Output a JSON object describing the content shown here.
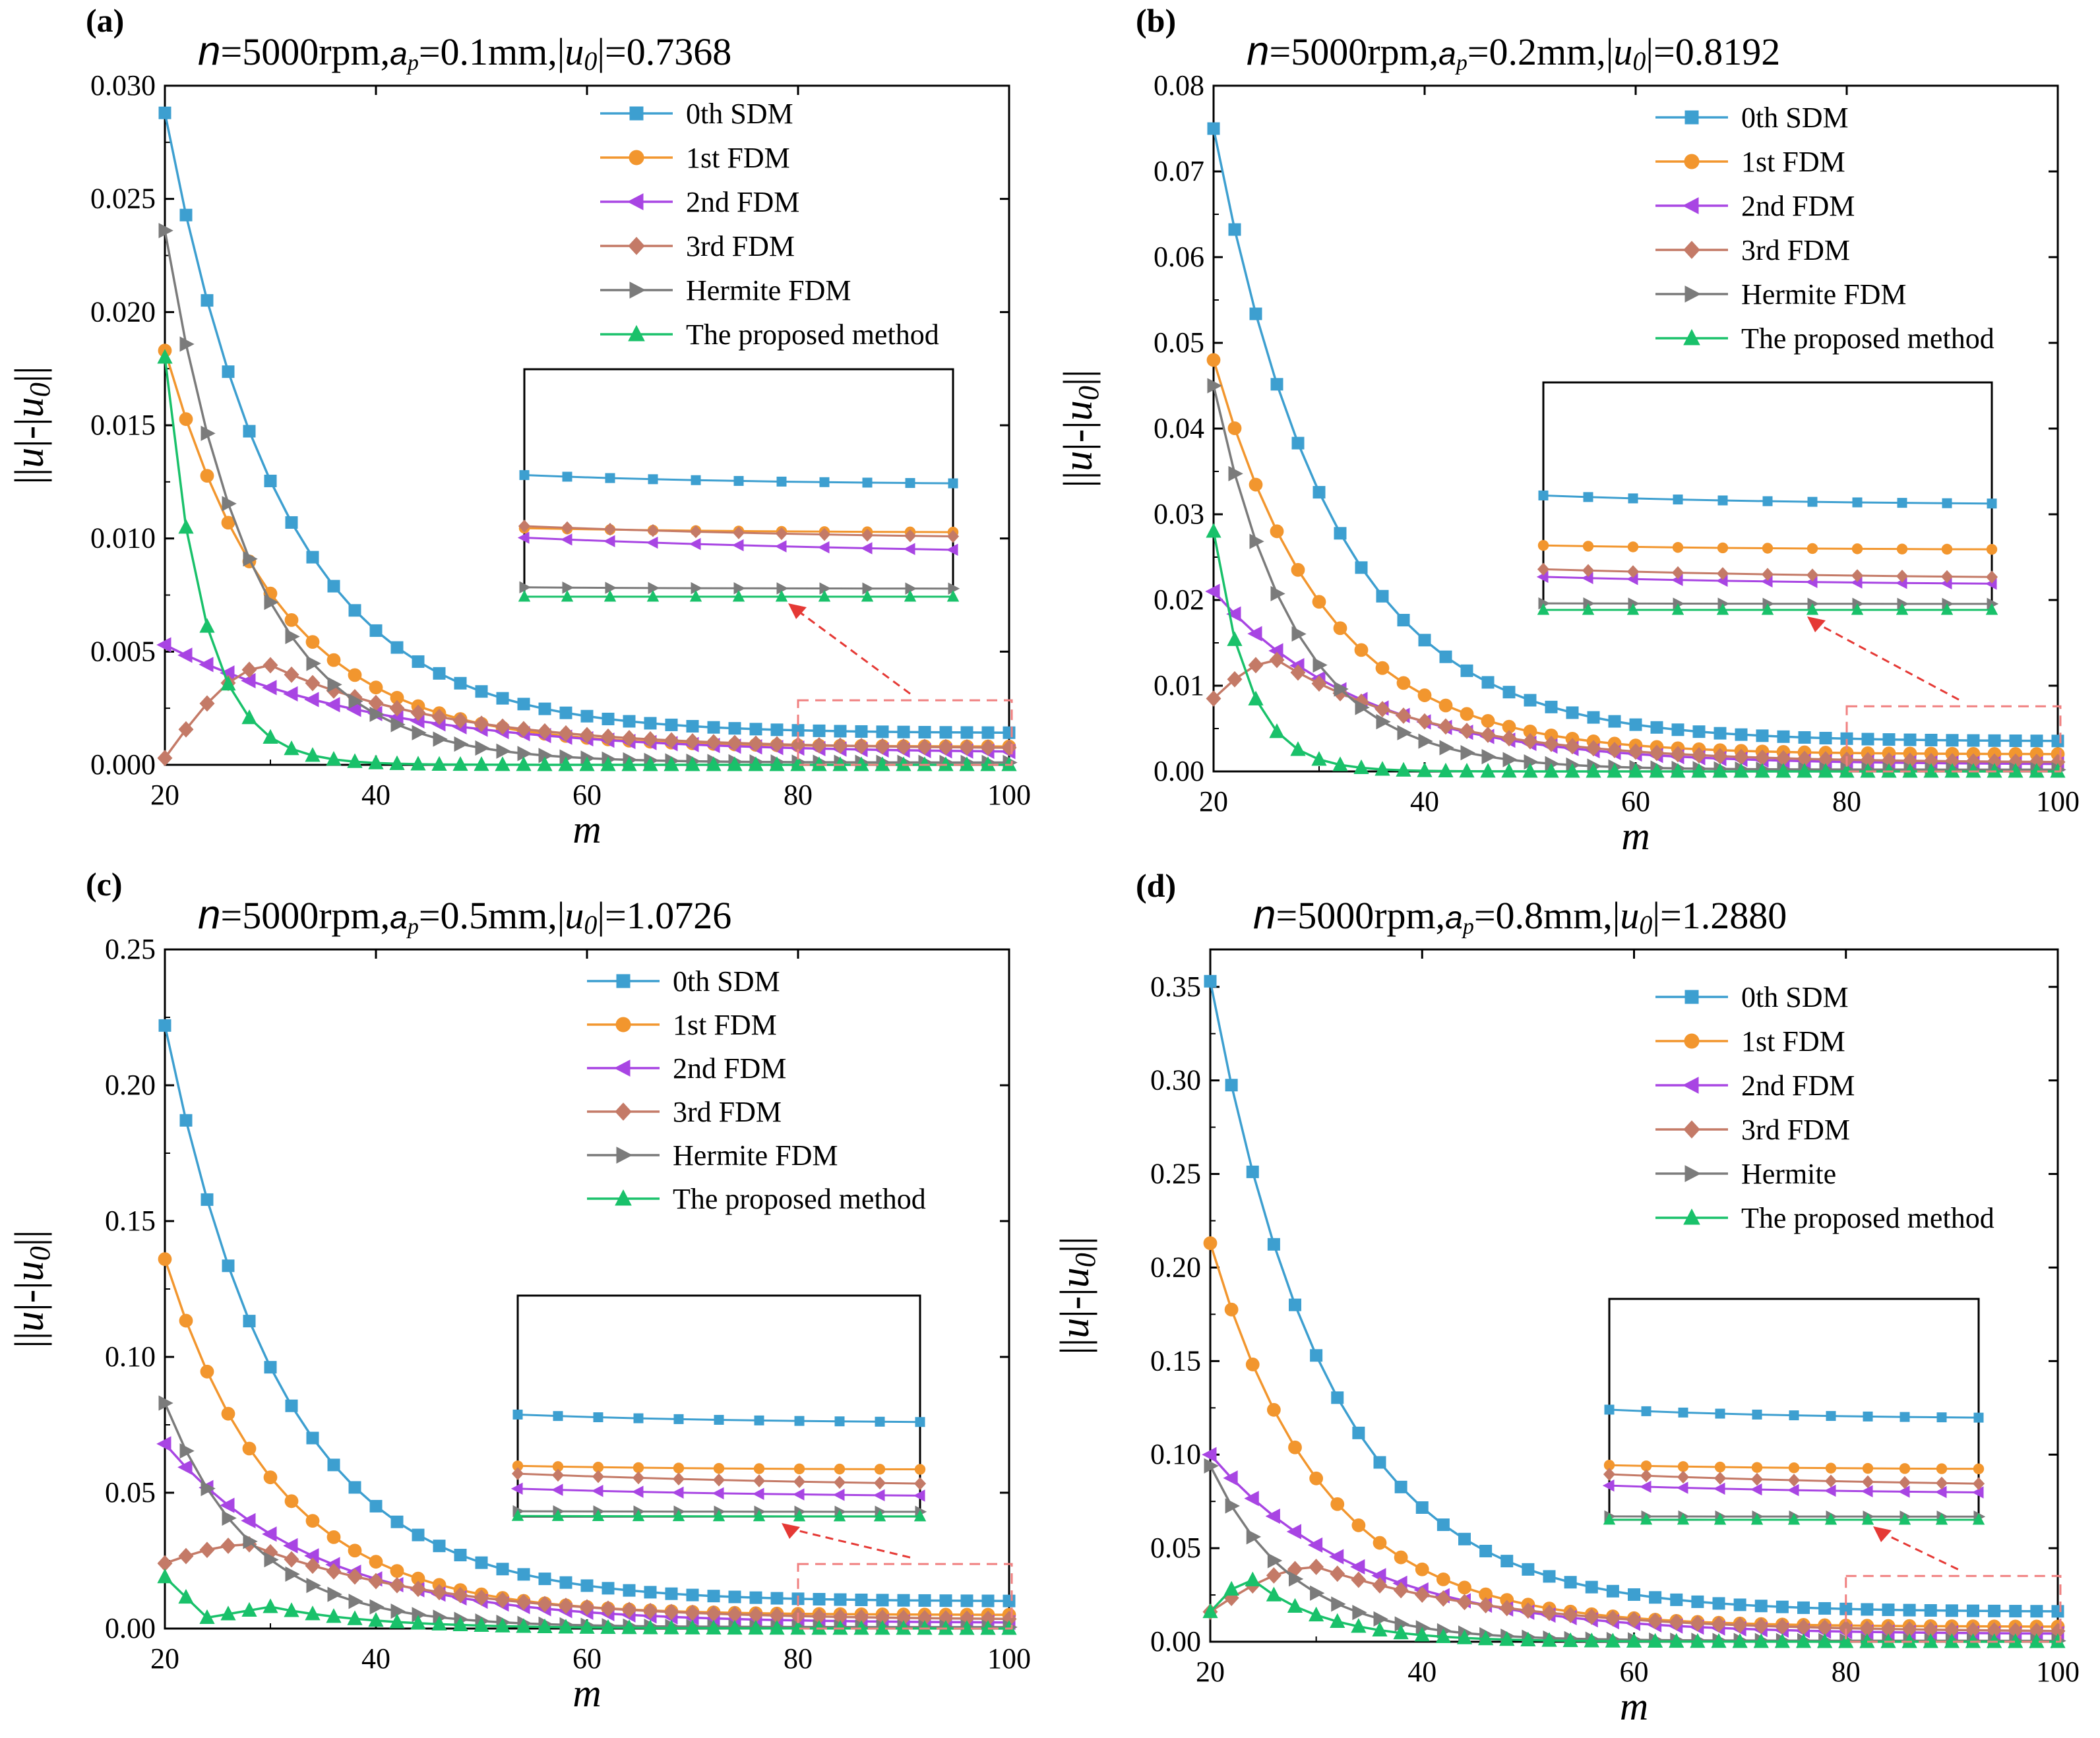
{
  "figure": {
    "caption": ""
  },
  "styles": {
    "0th SDM": {
      "color": "#3d9fd0",
      "marker": "square"
    },
    "1st FDM": {
      "color": "#f2962e",
      "marker": "circle"
    },
    "2nd FDM": {
      "color": "#a845e3",
      "marker": "tri-left"
    },
    "3rd FDM": {
      "color": "#c47a67",
      "marker": "diamond"
    },
    "Hermite": {
      "color": "#7b7b7b",
      "marker": "tri-right"
    },
    "Proposed": {
      "color": "#19c16a",
      "marker": "tri-up"
    }
  },
  "chart_data": [
    {
      "panel": "(a)",
      "type": "line",
      "title_parts": {
        "n": "n",
        "rpm": "=5000rpm,",
        "ap": "a",
        "ap_sub": "p",
        "ap_val": "=0.1mm,|",
        "u0": "u",
        "u0_sub": "0",
        "u0_val": "|=0.7368"
      },
      "xlabel": "m",
      "ylabel_parts": [
        "||",
        "u",
        "|-|",
        "u",
        "0",
        "||"
      ],
      "xlim": [
        20,
        100
      ],
      "ylim": [
        0,
        0.03
      ],
      "xticks": [
        20,
        40,
        60,
        80,
        100
      ],
      "yticks": [
        0,
        0.005,
        0.01,
        0.015,
        0.02,
        0.025,
        0.03
      ],
      "ytick_labels": [
        "0.000",
        "0.005",
        "0.010",
        "0.015",
        "0.020",
        "0.025",
        "0.030"
      ],
      "x_start": 20,
      "x_step": 2,
      "series": [
        {
          "name": "0th SDM",
          "style": "0th SDM",
          "start": 0.0288,
          "end": 0.0014,
          "k": 0.09
        },
        {
          "name": "1st FDM",
          "style": "1st FDM",
          "start": 0.0183,
          "end": 0.0008,
          "k": 0.095
        },
        {
          "name": "2nd FDM",
          "style": "2nd FDM",
          "start": 0.0053,
          "end": 0.0005,
          "k": 0.05
        },
        {
          "name": "3rd FDM",
          "style": "3rd FDM",
          "start": 0.0003,
          "peak_x": 30,
          "peak": 0.0044,
          "end": 0.0007,
          "k": 0.06
        },
        {
          "name": "Hermite FDM",
          "style": "Hermite",
          "start": 0.0236,
          "end": 0.0001,
          "k": 0.12
        },
        {
          "name": "The proposed method",
          "style": "Proposed",
          "start": 0.018,
          "end": 0.0,
          "k": 0.27
        }
      ],
      "annotation": "dashed zoom box at m=80–100 with arrow to inset"
    },
    {
      "panel": "(b)",
      "type": "line",
      "title_parts": {
        "n": "n",
        "rpm": "=5000rpm,",
        "ap": "a",
        "ap_sub": "p",
        "ap_val": "=0.2mm,|",
        "u0": "u",
        "u0_sub": "0",
        "u0_val": "|=0.8192"
      },
      "xlabel": "m",
      "ylabel_parts": [
        "||",
        "u",
        "|-|",
        "u",
        "0",
        "||"
      ],
      "xlim": [
        20,
        100
      ],
      "ylim": [
        0,
        0.08
      ],
      "xticks": [
        20,
        40,
        60,
        80,
        100
      ],
      "yticks": [
        0,
        0.01,
        0.02,
        0.03,
        0.04,
        0.05,
        0.06,
        0.07,
        0.08
      ],
      "ytick_labels": [
        "0.00",
        "0.01",
        "0.02",
        "0.03",
        "0.04",
        "0.05",
        "0.06",
        "0.07",
        "0.08"
      ],
      "x_start": 20,
      "x_step": 2,
      "series": [
        {
          "name": "0th SDM",
          "style": "0th SDM",
          "start": 0.075,
          "end": 0.0035,
          "k": 0.09
        },
        {
          "name": "1st FDM",
          "style": "1st FDM",
          "start": 0.048,
          "end": 0.002,
          "k": 0.095
        },
        {
          "name": "2nd FDM",
          "style": "2nd FDM",
          "start": 0.021,
          "end": 0.0008,
          "k": 0.07
        },
        {
          "name": "3rd FDM",
          "style": "3rd FDM",
          "start": 0.0085,
          "peak_x": 26,
          "peak": 0.013,
          "end": 0.001,
          "k": 0.065
        },
        {
          "name": "Hermite FDM",
          "style": "Hermite",
          "start": 0.045,
          "end": 0.0002,
          "k": 0.13
        },
        {
          "name": "The proposed method",
          "style": "Proposed",
          "start": 0.028,
          "end": 0.0,
          "k": 0.3
        }
      ],
      "annotation": "dashed zoom box at m=80–100 with arrow to inset"
    },
    {
      "panel": "(c)",
      "type": "line",
      "title_parts": {
        "n": "n",
        "rpm": "=5000rpm,",
        "ap": "a",
        "ap_sub": "p",
        "ap_val": "=0.5mm,|",
        "u0": "u",
        "u0_sub": "0",
        "u0_val": "|=1.0726"
      },
      "xlabel": "m",
      "ylabel_parts": [
        "||",
        "u",
        "|-|",
        "u",
        "0",
        "||"
      ],
      "xlim": [
        20,
        100
      ],
      "ylim": [
        0,
        0.25
      ],
      "xticks": [
        20,
        40,
        60,
        80,
        100
      ],
      "yticks": [
        0,
        0.05,
        0.1,
        0.15,
        0.2,
        0.25
      ],
      "ytick_labels": [
        "0.00",
        "0.05",
        "0.10",
        "0.15",
        "0.20",
        "0.25"
      ],
      "x_start": 20,
      "x_step": 2,
      "series": [
        {
          "name": "0th SDM",
          "style": "0th SDM",
          "start": 0.222,
          "end": 0.01,
          "k": 0.09
        },
        {
          "name": "1st FDM",
          "style": "1st FDM",
          "start": 0.136,
          "end": 0.005,
          "k": 0.095
        },
        {
          "name": "2nd FDM",
          "style": "2nd FDM",
          "start": 0.068,
          "end": 0.002,
          "k": 0.07
        },
        {
          "name": "3rd FDM",
          "style": "3rd FDM",
          "start": 0.024,
          "peak_x": 28,
          "peak": 0.031,
          "end": 0.003,
          "k": 0.055
        },
        {
          "name": "Hermite FDM",
          "style": "Hermite",
          "start": 0.083,
          "end": 0.0005,
          "k": 0.12
        },
        {
          "name": "The proposed method",
          "style": "Proposed",
          "start": 0.019,
          "dip": 0.004,
          "peak_x": 30,
          "peak": 0.008,
          "end": 0.0,
          "k": 0.1
        }
      ],
      "annotation": "dashed zoom box at m=80–100 with arrow to inset"
    },
    {
      "panel": "(d)",
      "type": "line",
      "title_parts": {
        "n": "n",
        "rpm": "=5000rpm,",
        "ap": "a",
        "ap_sub": "p",
        "ap_val": "=0.8mm,|",
        "u0": "u",
        "u0_sub": "0",
        "u0_val": "|=1.2880"
      },
      "xlabel": "m",
      "ylabel_parts": [
        "||",
        "u",
        "|-|",
        "u",
        "0",
        "||"
      ],
      "xlim": [
        20,
        100
      ],
      "ylim": [
        0,
        0.37
      ],
      "xticks": [
        20,
        40,
        60,
        80,
        100
      ],
      "yticks": [
        0,
        0.05,
        0.1,
        0.15,
        0.2,
        0.25,
        0.3,
        0.35
      ],
      "ytick_labels": [
        "0.00",
        "0.05",
        "0.10",
        "0.15",
        "0.20",
        "0.25",
        "0.30",
        "0.35"
      ],
      "x_start": 20,
      "x_step": 2,
      "series": [
        {
          "name": "0th SDM",
          "style": "0th SDM",
          "start": 0.353,
          "end": 0.016,
          "k": 0.09
        },
        {
          "name": "1st FDM",
          "style": "1st FDM",
          "start": 0.213,
          "end": 0.008,
          "k": 0.095
        },
        {
          "name": "2nd FDM",
          "style": "2nd FDM",
          "start": 0.1,
          "end": 0.004,
          "k": 0.07
        },
        {
          "name": "3rd FDM",
          "style": "3rd FDM",
          "start": 0.016,
          "peak_x": 30,
          "peak": 0.04,
          "end": 0.005,
          "k": 0.055
        },
        {
          "name": "Hermite",
          "style": "Hermite",
          "start": 0.094,
          "end": 0.0005,
          "k": 0.13
        },
        {
          "name": "The proposed method",
          "style": "Proposed",
          "start": 0.016,
          "peak_x": 24,
          "peak": 0.033,
          "end": 0.0,
          "k": 0.14
        }
      ],
      "annotation": "dashed zoom box at m=80–100 with arrow to inset"
    }
  ]
}
